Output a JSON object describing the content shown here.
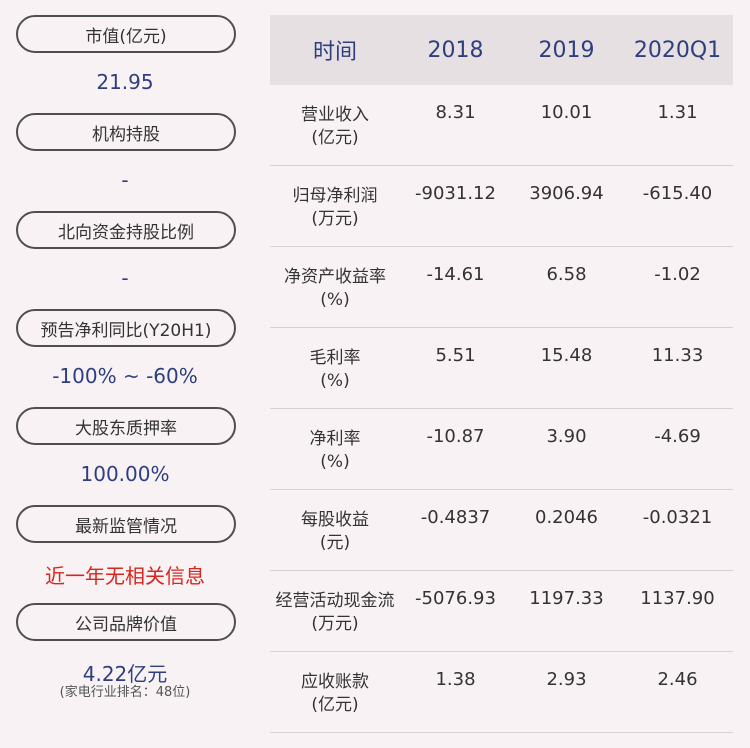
{
  "left_panel": {
    "items": [
      {
        "label": "市值(亿元)",
        "value": "21.95"
      },
      {
        "label": "机构持股",
        "value": "-"
      },
      {
        "label": "北向资金持股比例",
        "value": "-"
      },
      {
        "label": "预告净利同比(Y20H1)",
        "value": "-100% ~ -60%"
      },
      {
        "label": "大股东质押率",
        "value": "100.00%"
      },
      {
        "label": "最新监管情况",
        "value": "近一年无相关信息"
      },
      {
        "label": "公司品牌价值",
        "value": "4.22亿元",
        "note": "(家电行业排名：48位)"
      }
    ],
    "colors": {
      "value": "#2e3f80",
      "alert": "#d6261e"
    }
  },
  "table": {
    "headers": [
      "时间",
      "2018",
      "2019",
      "2020Q1"
    ],
    "rows": [
      {
        "name": "营业收入",
        "unit": "(亿元)",
        "values": [
          "8.31",
          "10.01",
          "1.31"
        ]
      },
      {
        "name": "归母净利润",
        "unit": "(万元)",
        "values": [
          "-9031.12",
          "3906.94",
          "-615.40"
        ]
      },
      {
        "name": "净资产收益率",
        "unit": "(%)",
        "values": [
          "-14.61",
          "6.58",
          "-1.02"
        ]
      },
      {
        "name": "毛利率",
        "unit": "(%)",
        "values": [
          "5.51",
          "15.48",
          "11.33"
        ]
      },
      {
        "name": "净利率",
        "unit": "(%)",
        "values": [
          "-10.87",
          "3.90",
          "-4.69"
        ]
      },
      {
        "name": "每股收益",
        "unit": "(元)",
        "values": [
          "-0.4837",
          "0.2046",
          "-0.0321"
        ]
      },
      {
        "name": "经营活动现金流",
        "unit": "(万元)",
        "values": [
          "-5076.93",
          "1197.33",
          "1137.90"
        ]
      },
      {
        "name": "应收账款",
        "unit": "(亿元)",
        "values": [
          "1.38",
          "2.93",
          "2.46"
        ]
      }
    ]
  }
}
